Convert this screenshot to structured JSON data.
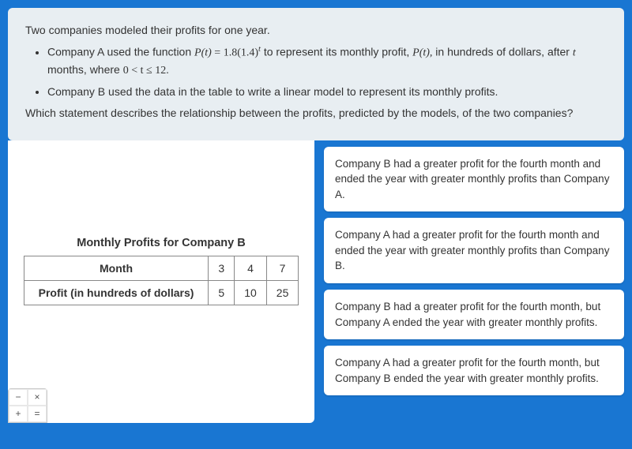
{
  "question": {
    "intro": "Two companies modeled their profits for one year.",
    "bullet_a_pre": "Company A used the function ",
    "bullet_a_post": " in hundreds of dollars, after ",
    "bullet_a_tail": " months, where ",
    "bullet_a_mid1": " to represent its monthly profit, ",
    "formula_lhs": "P(t)",
    "formula_eq": " = ",
    "formula_rhs_a": "1.8(1.4)",
    "formula_exp": "t",
    "p_of_t": "P(t),",
    "var_t": "t",
    "range_expr": "0 < t ≤ 12.",
    "bullet_b": "Company B used the data in the table to write a linear model to represent its monthly profits.",
    "prompt": "Which statement describes the relationship between the profits, predicted by the models, of the two companies?"
  },
  "table": {
    "title": "Monthly Profits for Company B",
    "row1_label": "Month",
    "row2_label": "Profit (in hundreds of dollars)",
    "cols": [
      "3",
      "4",
      "7"
    ],
    "vals": [
      "5",
      "10",
      "25"
    ]
  },
  "choices": {
    "a": "Company B had a greater profit for the fourth month and ended the year with greater monthly profits than Company A.",
    "b": "Company A had a greater profit for the fourth month and ended the year with greater monthly profits than Company B.",
    "c": "Company B had a greater profit for the fourth month, but Company A ended the year with greater monthly profits.",
    "d": "Company A had a greater profit for the fourth month, but Company B ended the year with greater monthly profits."
  },
  "calc": {
    "minus": "−",
    "times": "×",
    "plus": "+",
    "equals": "="
  },
  "colors": {
    "page_bg": "#1976d2",
    "question_bg": "#e8eef2",
    "panel_bg": "#ffffff",
    "text": "#333333",
    "border": "#888888"
  }
}
